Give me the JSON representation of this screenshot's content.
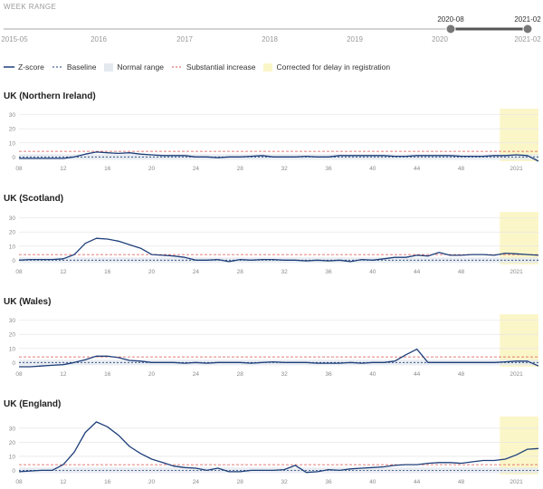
{
  "week_range": {
    "title": "WEEK RANGE",
    "ticks": [
      "2015-05",
      "2016",
      "2017",
      "2018",
      "2019",
      "2020"
    ],
    "selected_start": "2020-08",
    "selected_end": "2021-02",
    "end_label": "2021-02"
  },
  "legend": {
    "zscore": "Z-score",
    "baseline": "Baseline",
    "normal_range": "Normal range",
    "substantial": "Substantial increase",
    "corrected": "Corrected for delay in registration"
  },
  "colors": {
    "zscore": "#1e3f7a",
    "baseline": "#1e3f7a",
    "substantial": "#d9534f",
    "normal_range": "#e3e9ef",
    "corrected": "#fbf6c8",
    "grid": "#e6e6e6"
  },
  "chart_data": [
    {
      "type": "line",
      "title": "UK (Northern Ireland)",
      "x_ticks": [
        "08",
        "12",
        "16",
        "20",
        "24",
        "28",
        "32",
        "36",
        "40",
        "44",
        "48",
        "2021"
      ],
      "y_ticks": [
        0,
        10,
        20,
        30
      ],
      "ylim": [
        -3,
        33
      ],
      "baseline": 0,
      "substantial_increase": 4,
      "normal_range": [
        -2,
        2
      ],
      "corrected_weeks": [
        51.5,
        55
      ],
      "x": [
        8,
        9,
        10,
        11,
        12,
        13,
        14,
        15,
        16,
        17,
        18,
        19,
        20,
        21,
        22,
        23,
        24,
        25,
        26,
        27,
        28,
        29,
        30,
        31,
        32,
        33,
        34,
        35,
        36,
        37,
        38,
        39,
        40,
        41,
        42,
        43,
        44,
        45,
        46,
        47,
        48,
        49,
        50,
        51,
        52,
        53,
        54,
        55
      ],
      "series": [
        {
          "name": "Z-score",
          "values": [
            -1,
            -1,
            -1,
            -1,
            -1,
            0,
            2,
            3.5,
            3,
            2.5,
            3,
            2,
            1.5,
            1,
            1,
            1,
            0,
            0,
            -0.5,
            0,
            0,
            0.5,
            1,
            0,
            0,
            0,
            0.5,
            0,
            0,
            1,
            1,
            1,
            1,
            1,
            0.5,
            0.5,
            1,
            1,
            1,
            1,
            0.5,
            0.5,
            0.5,
            1,
            1,
            1.5,
            1,
            -3
          ]
        }
      ]
    },
    {
      "type": "line",
      "title": "UK (Scotland)",
      "x_ticks": [
        "08",
        "12",
        "16",
        "20",
        "24",
        "28",
        "32",
        "36",
        "40",
        "44",
        "48",
        "2021"
      ],
      "y_ticks": [
        0,
        10,
        20,
        30
      ],
      "ylim": [
        -3,
        33
      ],
      "baseline": 0,
      "substantial_increase": 4,
      "normal_range": [
        -2,
        2
      ],
      "corrected_weeks": [
        51.5,
        55
      ],
      "x": [
        8,
        9,
        10,
        11,
        12,
        13,
        14,
        15,
        16,
        17,
        18,
        19,
        20,
        21,
        22,
        23,
        24,
        25,
        26,
        27,
        28,
        29,
        30,
        31,
        32,
        33,
        34,
        35,
        36,
        37,
        38,
        39,
        40,
        41,
        42,
        43,
        44,
        45,
        46,
        47,
        48,
        49,
        50,
        51,
        52,
        53,
        54,
        55
      ],
      "series": [
        {
          "name": "Z-score",
          "values": [
            0,
            0.5,
            0.5,
            0.5,
            1,
            4,
            12,
            15.5,
            15,
            13.5,
            11,
            8.5,
            4,
            3.5,
            3,
            2,
            0,
            0,
            0.5,
            -1,
            0.5,
            0,
            0.5,
            0.5,
            0,
            0,
            -0.5,
            0,
            -0.5,
            0,
            -1,
            0.5,
            0,
            1,
            2,
            2,
            3.5,
            3,
            5.5,
            3.5,
            3.5,
            4,
            4,
            3.5,
            5,
            4.5,
            4,
            3.5
          ]
        }
      ]
    },
    {
      "type": "line",
      "title": "UK (Wales)",
      "x_ticks": [
        "08",
        "12",
        "16",
        "20",
        "24",
        "28",
        "32",
        "36",
        "40",
        "44",
        "48",
        "2021"
      ],
      "y_ticks": [
        0,
        10,
        20,
        30
      ],
      "ylim": [
        -3,
        33
      ],
      "baseline": 0,
      "substantial_increase": 4,
      "normal_range": [
        -2,
        2
      ],
      "corrected_weeks": [
        51.5,
        55
      ],
      "x": [
        8,
        9,
        10,
        11,
        12,
        13,
        14,
        15,
        16,
        17,
        18,
        19,
        20,
        21,
        22,
        23,
        24,
        25,
        26,
        27,
        28,
        29,
        30,
        31,
        32,
        33,
        34,
        35,
        36,
        37,
        38,
        39,
        40,
        41,
        42,
        43,
        44,
        45,
        46,
        47,
        48,
        49,
        50,
        51,
        52,
        53,
        54,
        55
      ],
      "series": [
        {
          "name": "Z-score",
          "values": [
            -3,
            -3,
            -2.5,
            -2,
            -1.5,
            0,
            2,
            4.5,
            4.5,
            3.5,
            1.5,
            1,
            0,
            0,
            0,
            -0.5,
            0,
            -0.5,
            0,
            0,
            0,
            -0.5,
            0,
            0.5,
            0,
            0,
            0,
            -0.5,
            -0.5,
            -0.5,
            0,
            -0.5,
            0,
            0,
            1,
            5.5,
            9.5,
            0,
            0,
            0,
            0,
            0,
            0,
            0,
            0.5,
            1,
            1,
            -2.5
          ]
        }
      ]
    },
    {
      "type": "line",
      "title": "UK (England)",
      "x_ticks": [
        "08",
        "12",
        "16",
        "20",
        "24",
        "28",
        "32",
        "36",
        "40",
        "44",
        "48",
        "2021"
      ],
      "y_ticks": [
        0,
        10,
        20,
        30
      ],
      "ylim": [
        -3,
        37
      ],
      "baseline": 0,
      "substantial_increase": 4,
      "normal_range": [
        -2,
        2
      ],
      "corrected_weeks": [
        51.5,
        55
      ],
      "x": [
        8,
        9,
        10,
        11,
        12,
        13,
        14,
        15,
        16,
        17,
        18,
        19,
        20,
        21,
        22,
        23,
        24,
        25,
        26,
        27,
        28,
        29,
        30,
        31,
        32,
        33,
        34,
        35,
        36,
        37,
        38,
        39,
        40,
        41,
        42,
        43,
        44,
        45,
        46,
        47,
        48,
        49,
        50,
        51,
        52,
        53,
        54,
        55
      ],
      "series": [
        {
          "name": "Z-score",
          "values": [
            -1,
            -0.5,
            0,
            0,
            4,
            13,
            27,
            34.5,
            31,
            25,
            17,
            12,
            8,
            5.5,
            3,
            2,
            1.5,
            0,
            1.5,
            -1,
            -1,
            0,
            0,
            0,
            0.5,
            3.5,
            -1.5,
            -1,
            0.5,
            0,
            1,
            1.5,
            2,
            2.5,
            3.5,
            4,
            4,
            5,
            5.5,
            5.5,
            5,
            6,
            7,
            7,
            8,
            11,
            15,
            15.5
          ]
        }
      ]
    }
  ]
}
